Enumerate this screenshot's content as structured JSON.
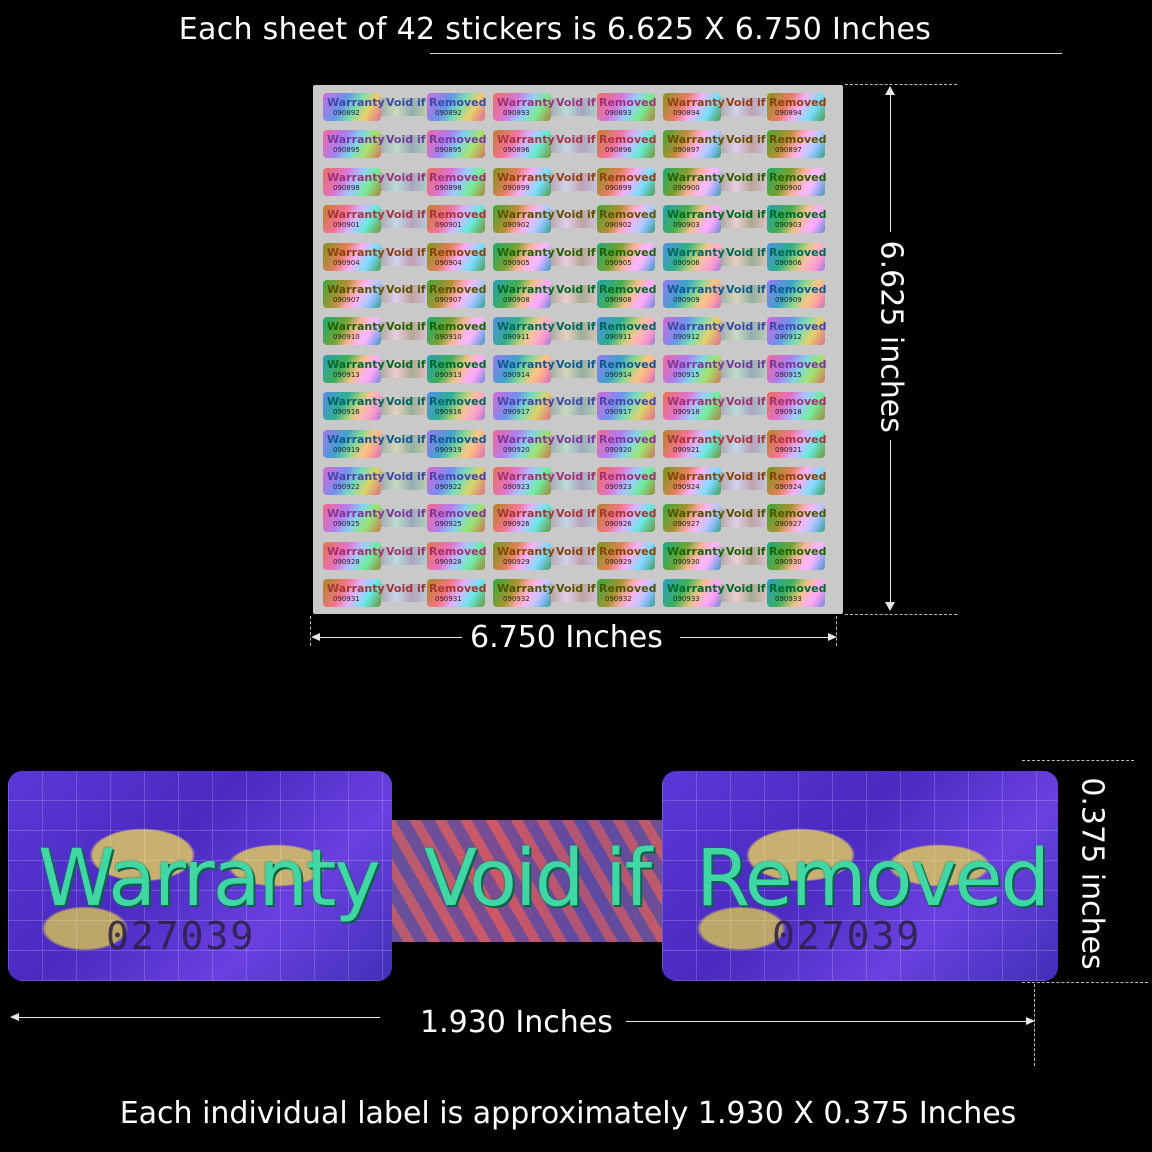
{
  "title": "Each sheet of 42 stickers is 6.625 X 6.750 Inches",
  "sheet_height_label": "6.625 inches",
  "sheet_width_label": "6.750 Inches",
  "label": {
    "word_1": "Warranty",
    "word_2": "Void if",
    "word_3": "Removed",
    "serial": "027039"
  },
  "label_height_label": "0.375 inches",
  "label_width_label": "1.930 Inches",
  "footer": "Each individual label is approximately 1.930 X 0.375 Inches",
  "sheet": {
    "sticker_words": [
      "Warranty",
      "Void if",
      "Removed"
    ],
    "serials": [
      "090892",
      "090893",
      "090894",
      "090895",
      "090896",
      "090897",
      "090898",
      "090899",
      "090900",
      "090901",
      "090902",
      "090903",
      "090904",
      "090905",
      "090906",
      "090907",
      "090908",
      "090909",
      "090910",
      "090911",
      "090912",
      "090913",
      "090914",
      "090915",
      "090916",
      "090917",
      "090918",
      "090919",
      "090920",
      "090921",
      "090922",
      "090923",
      "090924",
      "090925",
      "090926",
      "090927",
      "090928",
      "090929",
      "090930",
      "090931",
      "090932",
      "090933"
    ]
  }
}
